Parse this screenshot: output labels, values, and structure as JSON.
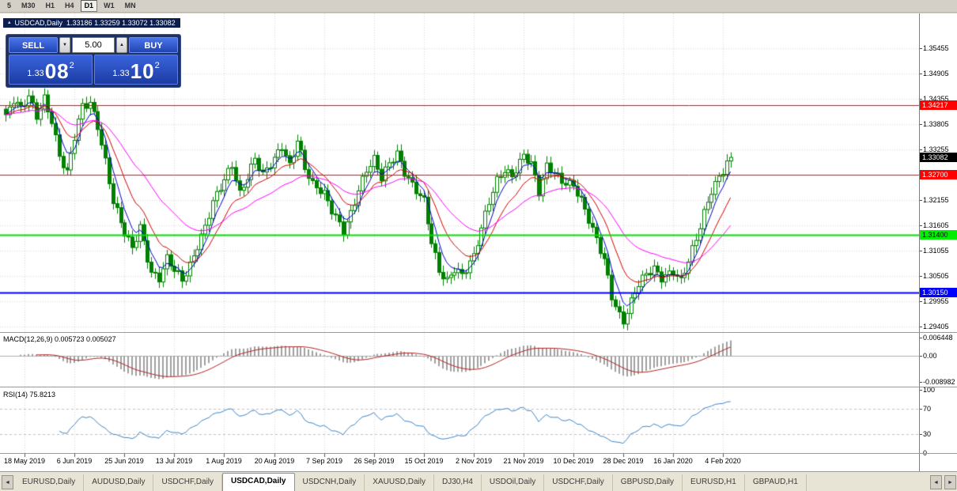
{
  "toolbar": {
    "periods": [
      "5",
      "M30",
      "H1",
      "H4",
      "D1",
      "W1",
      "MN"
    ],
    "active_period": "D1"
  },
  "icons": {
    "collapse": "▴",
    "vol_down": "▼",
    "vol_up": "▲",
    "tab_scroll_left": "◄",
    "tab_scroll_right": "►"
  },
  "chart_header": {
    "symbol_title": "USDCAD,Daily",
    "ohlc_values": "1.33186 1.33259 1.33072 1.33082"
  },
  "trade_panel": {
    "sell_label": "SELL",
    "buy_label": "BUY",
    "volume": "5.00",
    "sell_price_prefix": "1.33",
    "sell_price_big": "08",
    "sell_price_sup": "2",
    "buy_price_prefix": "1.33",
    "buy_price_big": "10",
    "buy_price_sup": "2"
  },
  "price_axis": {
    "labels": [
      "1.35455",
      "1.34905",
      "1.34355",
      "1.33805",
      "1.33255",
      "1.32705",
      "1.32155",
      "1.31605",
      "1.31055",
      "1.30505",
      "1.29955",
      "1.29405"
    ],
    "tags": [
      {
        "text": "1.34217",
        "value": 1.34217,
        "bg": "#FF0000",
        "fg": "#FFFFFF",
        "interactable": true
      },
      {
        "text": "1.33082",
        "value": 1.33082,
        "bg": "#000000",
        "fg": "#FFFFFF",
        "interactable": false
      },
      {
        "text": "1.32700",
        "value": 1.327,
        "bg": "#FF0000",
        "fg": "#FFFFFF",
        "interactable": true
      },
      {
        "text": "1.31400",
        "value": 1.314,
        "bg": "#00EE00",
        "fg": "#000000",
        "interactable": true
      },
      {
        "text": "1.30150",
        "value": 1.3015,
        "bg": "#0000FF",
        "fg": "#FFFFFF",
        "interactable": true
      }
    ]
  },
  "macd": {
    "label": "MACD(12,26,9) 0.005723 0.005027",
    "params": {
      "fast": 12,
      "slow": 26,
      "signal": 9
    },
    "axis_labels": [
      {
        "text": "0.006448",
        "value": 0.006448
      },
      {
        "text": "0.00",
        "value": 0
      },
      {
        "text": "-0.008982",
        "value": -0.008982
      }
    ]
  },
  "rsi": {
    "label": "RSI(14) 75.8213",
    "period": 14,
    "last_value": 75.8213,
    "levels": [
      70,
      30
    ],
    "axis_labels": [
      {
        "text": "100",
        "value": 100
      },
      {
        "text": "70",
        "value": 70
      },
      {
        "text": "30",
        "value": 30
      },
      {
        "text": "0",
        "value": 0
      }
    ]
  },
  "time_axis": {
    "labels": [
      "18 May 2019",
      "6 Jun 2019",
      "25 Jun 2019",
      "13 Jul 2019",
      "1 Aug 2019",
      "20 Aug 2019",
      "7 Sep 2019",
      "26 Sep 2019",
      "15 Oct 2019",
      "2 Nov 2019",
      "21 Nov 2019",
      "10 Dec 2019",
      "28 Dec 2019",
      "16 Jan 2020",
      "4 Feb 2020"
    ],
    "tick_indices": [
      5,
      18,
      31,
      44,
      57,
      70,
      83,
      96,
      109,
      122,
      135,
      148,
      161,
      174,
      187
    ]
  },
  "chart_data": {
    "type": "candlestick",
    "symbol": "USDCAD",
    "timeframe": "Daily",
    "num_candles": 190,
    "last_close": 1.33082,
    "price_range_shown": [
      1.2939,
      1.358
    ],
    "close_anchors": [
      [
        0,
        1.3395
      ],
      [
        2,
        1.343
      ],
      [
        4,
        1.341
      ],
      [
        6,
        1.344
      ],
      [
        8,
        1.34
      ],
      [
        10,
        1.344
      ],
      [
        12,
        1.339
      ],
      [
        14,
        1.331
      ],
      [
        16,
        1.327
      ],
      [
        18,
        1.335
      ],
      [
        20,
        1.342
      ],
      [
        22,
        1.343
      ],
      [
        24,
        1.338
      ],
      [
        26,
        1.33
      ],
      [
        28,
        1.321
      ],
      [
        31,
        1.314
      ],
      [
        33,
        1.311
      ],
      [
        35,
        1.316
      ],
      [
        38,
        1.306
      ],
      [
        40,
        1.3045
      ],
      [
        42,
        1.3085
      ],
      [
        44,
        1.306
      ],
      [
        46,
        1.304
      ],
      [
        48,
        1.3075
      ],
      [
        50,
        1.312
      ],
      [
        52,
        1.316
      ],
      [
        54,
        1.321
      ],
      [
        57,
        1.3255
      ],
      [
        59,
        1.329
      ],
      [
        61,
        1.323
      ],
      [
        63,
        1.327
      ],
      [
        65,
        1.331
      ],
      [
        67,
        1.327
      ],
      [
        70,
        1.33
      ],
      [
        72,
        1.333
      ],
      [
        74,
        1.329
      ],
      [
        76,
        1.335
      ],
      [
        78,
        1.329
      ],
      [
        80,
        1.325
      ],
      [
        83,
        1.3225
      ],
      [
        85,
        1.319
      ],
      [
        88,
        1.315
      ],
      [
        90,
        1.319
      ],
      [
        92,
        1.324
      ],
      [
        94,
        1.328
      ],
      [
        96,
        1.33
      ],
      [
        98,
        1.326
      ],
      [
        100,
        1.3295
      ],
      [
        102,
        1.332
      ],
      [
        104,
        1.328
      ],
      [
        106,
        1.325
      ],
      [
        109,
        1.321
      ],
      [
        111,
        1.312
      ],
      [
        113,
        1.306
      ],
      [
        115,
        1.3042
      ],
      [
        117,
        1.307
      ],
      [
        119,
        1.3055
      ],
      [
        122,
        1.309
      ],
      [
        124,
        1.315
      ],
      [
        126,
        1.321
      ],
      [
        128,
        1.326
      ],
      [
        130,
        1.3285
      ],
      [
        132,
        1.327
      ],
      [
        135,
        1.331
      ],
      [
        137,
        1.329
      ],
      [
        139,
        1.323
      ],
      [
        141,
        1.329
      ],
      [
        143,
        1.328
      ],
      [
        145,
        1.326
      ],
      [
        148,
        1.3245
      ],
      [
        150,
        1.321
      ],
      [
        152,
        1.317
      ],
      [
        154,
        1.313
      ],
      [
        156,
        1.309
      ],
      [
        158,
        1.301
      ],
      [
        160,
        1.2965
      ],
      [
        161,
        1.295
      ],
      [
        163,
        1.299
      ],
      [
        165,
        1.303
      ],
      [
        167,
        1.3055
      ],
      [
        169,
        1.307
      ],
      [
        171,
        1.305
      ],
      [
        174,
        1.306
      ],
      [
        176,
        1.3035
      ],
      [
        178,
        1.308
      ],
      [
        180,
        1.313
      ],
      [
        182,
        1.319
      ],
      [
        184,
        1.324
      ],
      [
        187,
        1.328
      ],
      [
        188,
        1.3295
      ],
      [
        189,
        1.33082
      ]
    ],
    "horizontal_lines": [
      {
        "value": 1.34217,
        "color": "#FF0000",
        "width": 1
      },
      {
        "value": 1.327,
        "color": "#FF0000",
        "width": 1
      },
      {
        "value": 1.314,
        "color": "#00E000",
        "width": 2
      },
      {
        "value": 1.3015,
        "color": "#0000FF",
        "width": 2
      }
    ],
    "moving_averages": [
      {
        "type": "ema",
        "period": 5,
        "color": "#0000CD"
      },
      {
        "type": "ema",
        "period": 12,
        "color": "#D40000"
      },
      {
        "type": "ema",
        "period": 30,
        "color": "#FF00FF"
      }
    ],
    "style": {
      "candle_up_fill": "#FFFFFF",
      "candle_down_fill": "#008000",
      "candle_stroke": "#008000",
      "grid_color": "#D8D8D8",
      "macd_histogram_color": "#A0A0A0",
      "macd_signal_color": "#B22222",
      "rsi_line_color": "#3D85C8",
      "rsi_level_color": "#C0C0C0"
    }
  },
  "tabs": {
    "items": [
      {
        "label": "EURUSD,Daily",
        "active": false
      },
      {
        "label": "AUDUSD,Daily",
        "active": false
      },
      {
        "label": "USDCHF,Daily",
        "active": false
      },
      {
        "label": "USDCAD,Daily",
        "active": true
      },
      {
        "label": "USDCNH,Daily",
        "active": false
      },
      {
        "label": "XAUUSD,Daily",
        "active": false
      },
      {
        "label": "DJ30,H4",
        "active": false
      },
      {
        "label": "USDOil,Daily",
        "active": false
      },
      {
        "label": "USDCHF,Daily",
        "active": false
      },
      {
        "label": "GBPUSD,Daily",
        "active": false
      },
      {
        "label": "EURUSD,H1",
        "active": false
      },
      {
        "label": "GBPAUD,H1",
        "active": false
      }
    ]
  }
}
